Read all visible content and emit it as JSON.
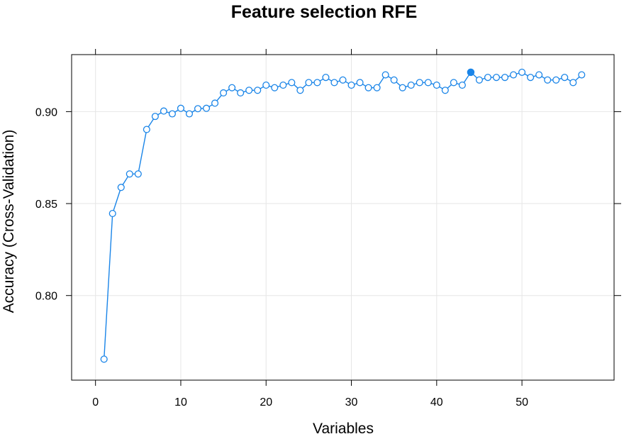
{
  "chart_data": {
    "type": "line",
    "title": "Feature selection RFE",
    "xlabel": "Variables",
    "ylabel": "Accuracy (Cross-Validation)",
    "xlim": [
      -2.8,
      60.8
    ],
    "ylim": [
      0.754,
      0.931
    ],
    "x_ticks": [
      0,
      10,
      20,
      30,
      40,
      50
    ],
    "x_tick_labels": [
      "0",
      "10",
      "20",
      "30",
      "40",
      "50"
    ],
    "y_ticks": [
      0.8,
      0.85,
      0.9
    ],
    "y_tick_labels": [
      "0.80",
      "0.85",
      "0.90"
    ],
    "grid": true,
    "colors": {
      "series": "#1a85e8",
      "grid": "#e6e6e6",
      "frame": "#000000"
    },
    "series": [
      {
        "marker": "open-circle",
        "highlight_index": 43,
        "x": [
          1,
          2,
          3,
          4,
          5,
          6,
          7,
          8,
          9,
          10,
          11,
          12,
          13,
          14,
          15,
          16,
          17,
          18,
          19,
          20,
          21,
          22,
          23,
          24,
          25,
          26,
          27,
          28,
          29,
          30,
          31,
          32,
          33,
          34,
          35,
          36,
          37,
          38,
          39,
          40,
          41,
          42,
          43,
          44,
          45,
          46,
          47,
          48,
          49,
          50,
          51,
          52,
          53,
          54,
          55,
          56,
          57
        ],
        "values": [
          0.7654,
          0.8446,
          0.8588,
          0.8661,
          0.8661,
          0.8903,
          0.8974,
          0.9003,
          0.8988,
          0.9018,
          0.8988,
          0.9016,
          0.9018,
          0.9046,
          0.9102,
          0.913,
          0.9102,
          0.9116,
          0.9116,
          0.9144,
          0.913,
          0.9144,
          0.9158,
          0.9116,
          0.9158,
          0.9158,
          0.9186,
          0.9158,
          0.9172,
          0.9144,
          0.9158,
          0.913,
          0.913,
          0.92,
          0.9172,
          0.913,
          0.9144,
          0.9158,
          0.9158,
          0.9144,
          0.9116,
          0.9158,
          0.9144,
          0.9214,
          0.9172,
          0.9186,
          0.9186,
          0.9186,
          0.92,
          0.9214,
          0.9186,
          0.92,
          0.9172,
          0.9172,
          0.9186,
          0.9158,
          0.92
        ]
      }
    ]
  }
}
